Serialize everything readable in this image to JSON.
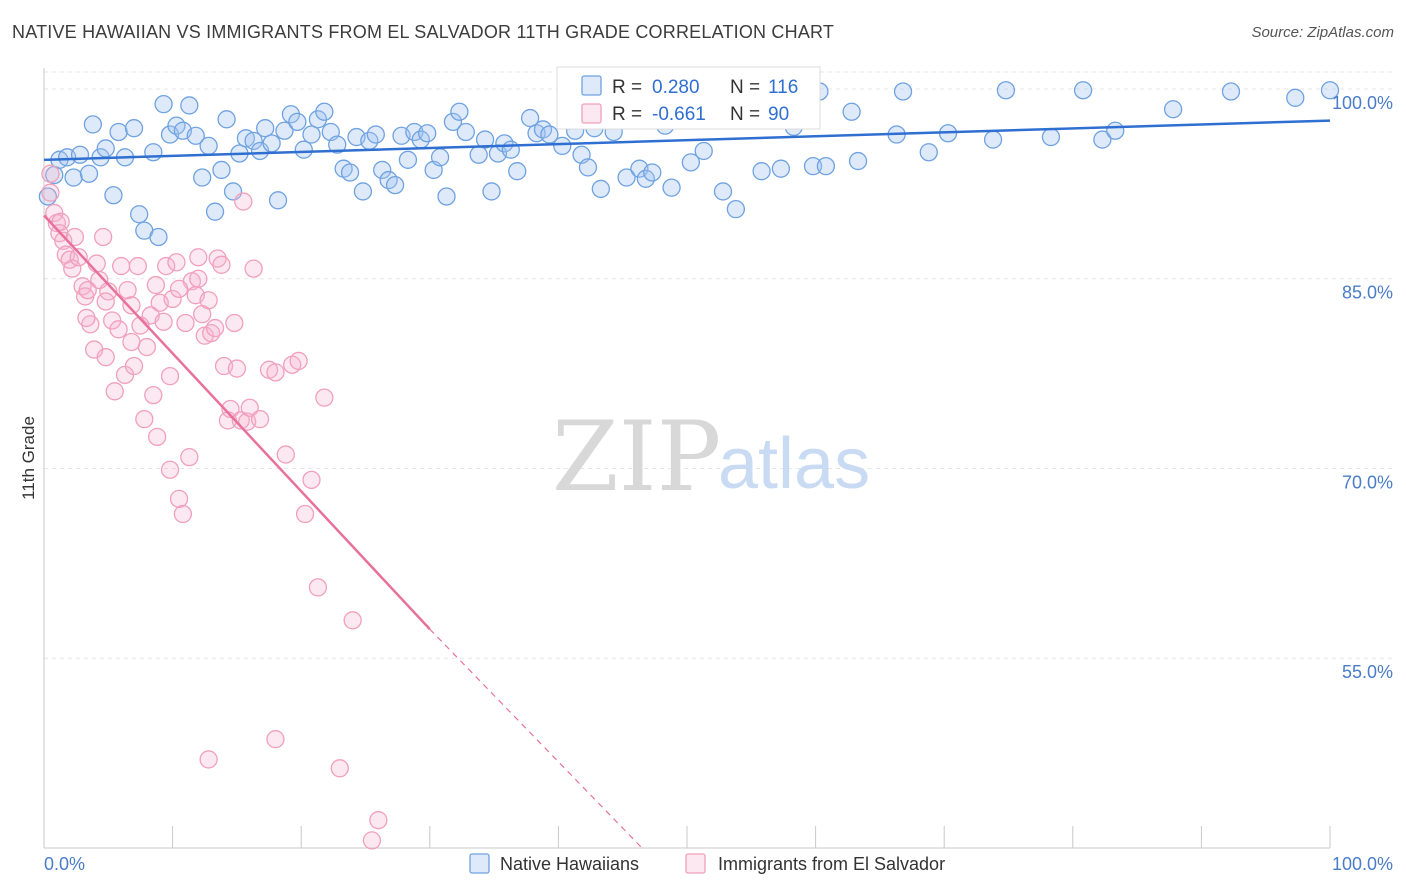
{
  "title": "NATIVE HAWAIIAN VS IMMIGRANTS FROM EL SALVADOR 11TH GRADE CORRELATION CHART",
  "source": "Source: ZipAtlas.com",
  "watermark": {
    "zip": "ZIP",
    "atlas": "atlas"
  },
  "colors": {
    "blue": "#6fa2e0",
    "blue_fill": "rgba(160,195,240,0.35)",
    "blue_line": "#2f6fd1",
    "pink": "#f0a0bb",
    "pink_fill": "rgba(245,180,205,0.30)",
    "pink_line": "#e8719b",
    "grid": "#e6e6e6"
  },
  "legend_box": {
    "rows": [
      {
        "r_label": "R =",
        "r_value": "0.280",
        "n_label": "N =",
        "n_value": "116",
        "color": "blue"
      },
      {
        "r_label": "R =",
        "r_value": "-0.661",
        "n_label": "N =",
        "n_value": "90",
        "color": "pink"
      }
    ]
  },
  "bottom_legend": [
    {
      "label": "Native Hawaiians",
      "color": "blue"
    },
    {
      "label": "Immigrants from El Salvador",
      "color": "pink"
    }
  ],
  "chart_data": {
    "type": "scatter",
    "ylabel": "11th Grade",
    "xlim": [
      0,
      100
    ],
    "ylim": [
      40,
      101.5
    ],
    "x_tick_labels": [
      {
        "v": 0,
        "label": "0.0%"
      },
      {
        "v": 100,
        "label": "100.0%"
      }
    ],
    "y_ticks": [
      {
        "v": 100,
        "label": "100.0%"
      },
      {
        "v": 85,
        "label": "85.0%"
      },
      {
        "v": 70,
        "label": "70.0%"
      },
      {
        "v": 55,
        "label": "55.0%"
      }
    ],
    "grid": true,
    "series": [
      {
        "name": "Native Hawaiians",
        "color": "blue",
        "trend": {
          "x0": 0,
          "y0": 94.4,
          "x1": 100,
          "y1": 97.5,
          "dash_from": null
        },
        "points": [
          [
            0.3,
            91.5
          ],
          [
            0.8,
            93.2
          ],
          [
            1.2,
            94.4
          ],
          [
            1.8,
            94.6
          ],
          [
            2.3,
            93.0
          ],
          [
            2.8,
            94.8
          ],
          [
            3.5,
            93.3
          ],
          [
            3.8,
            97.2
          ],
          [
            4.4,
            94.6
          ],
          [
            4.8,
            95.3
          ],
          [
            5.4,
            91.6
          ],
          [
            5.8,
            96.6
          ],
          [
            6.3,
            94.6
          ],
          [
            7.0,
            96.9
          ],
          [
            7.4,
            90.1
          ],
          [
            7.8,
            88.8
          ],
          [
            8.5,
            95.0
          ],
          [
            8.9,
            88.3
          ],
          [
            9.3,
            98.8
          ],
          [
            9.8,
            96.4
          ],
          [
            10.3,
            97.1
          ],
          [
            10.8,
            96.7
          ],
          [
            11.3,
            98.7
          ],
          [
            11.8,
            96.3
          ],
          [
            12.3,
            93.0
          ],
          [
            12.8,
            95.5
          ],
          [
            13.3,
            90.3
          ],
          [
            13.8,
            93.6
          ],
          [
            14.2,
            97.6
          ],
          [
            14.7,
            91.9
          ],
          [
            15.2,
            94.9
          ],
          [
            15.7,
            96.1
          ],
          [
            16.3,
            95.9
          ],
          [
            16.8,
            95.1
          ],
          [
            17.2,
            96.9
          ],
          [
            17.7,
            95.7
          ],
          [
            18.2,
            91.2
          ],
          [
            18.7,
            96.7
          ],
          [
            19.2,
            98.0
          ],
          [
            19.7,
            97.4
          ],
          [
            20.2,
            95.2
          ],
          [
            20.8,
            96.4
          ],
          [
            21.3,
            97.6
          ],
          [
            21.8,
            98.2
          ],
          [
            22.3,
            96.6
          ],
          [
            22.8,
            95.6
          ],
          [
            23.3,
            93.7
          ],
          [
            23.8,
            93.4
          ],
          [
            24.3,
            96.2
          ],
          [
            24.8,
            91.9
          ],
          [
            25.3,
            95.9
          ],
          [
            25.8,
            96.4
          ],
          [
            26.3,
            93.6
          ],
          [
            26.8,
            92.8
          ],
          [
            27.3,
            92.4
          ],
          [
            27.8,
            96.3
          ],
          [
            28.3,
            94.4
          ],
          [
            28.8,
            96.6
          ],
          [
            29.3,
            96.0
          ],
          [
            29.8,
            96.5
          ],
          [
            30.3,
            93.6
          ],
          [
            30.8,
            94.6
          ],
          [
            31.3,
            91.5
          ],
          [
            31.8,
            97.4
          ],
          [
            32.3,
            98.2
          ],
          [
            32.8,
            96.6
          ],
          [
            33.8,
            94.8
          ],
          [
            34.3,
            96.0
          ],
          [
            34.8,
            91.9
          ],
          [
            35.3,
            94.9
          ],
          [
            35.8,
            95.7
          ],
          [
            36.3,
            95.2
          ],
          [
            36.8,
            93.5
          ],
          [
            37.8,
            97.7
          ],
          [
            38.3,
            96.5
          ],
          [
            38.8,
            96.8
          ],
          [
            39.3,
            96.4
          ],
          [
            40.3,
            95.5
          ],
          [
            40.8,
            97.5
          ],
          [
            41.8,
            94.8
          ],
          [
            42.3,
            93.8
          ],
          [
            42.8,
            96.9
          ],
          [
            43.3,
            92.1
          ],
          [
            44.3,
            96.6
          ],
          [
            45.3,
            93.0
          ],
          [
            46.3,
            93.7
          ],
          [
            46.8,
            92.9
          ],
          [
            47.3,
            93.4
          ],
          [
            48.8,
            92.2
          ],
          [
            50.3,
            94.2
          ],
          [
            51.3,
            95.1
          ],
          [
            52.8,
            91.9
          ],
          [
            53.8,
            90.5
          ],
          [
            55.8,
            93.5
          ],
          [
            57.3,
            93.7
          ],
          [
            58.3,
            97.0
          ],
          [
            59.8,
            93.9
          ],
          [
            60.8,
            93.9
          ],
          [
            63.3,
            94.3
          ],
          [
            66.3,
            96.4
          ],
          [
            68.8,
            95.0
          ],
          [
            70.3,
            96.5
          ],
          [
            73.8,
            96.0
          ],
          [
            78.3,
            96.2
          ],
          [
            82.3,
            96.0
          ],
          [
            87.8,
            98.4
          ],
          [
            41.3,
            96.7
          ],
          [
            48.3,
            97.1
          ],
          [
            55.3,
            99.6
          ],
          [
            60.3,
            99.8
          ],
          [
            66.8,
            99.8
          ],
          [
            74.8,
            99.9
          ],
          [
            80.8,
            99.9
          ],
          [
            83.3,
            96.7
          ],
          [
            92.3,
            99.8
          ],
          [
            97.3,
            99.3
          ],
          [
            100.0,
            99.9
          ],
          [
            62.8,
            98.2
          ]
        ]
      },
      {
        "name": "Immigrants from El Salvador",
        "color": "pink",
        "trend": {
          "x0": 0,
          "y0": 90.0,
          "x1": 30.0,
          "y1": 57.3,
          "dash_to_x": 46.5,
          "dash_to_y": 40.0
        },
        "points": [
          [
            0.5,
            93.3
          ],
          [
            0.8,
            90.2
          ],
          [
            1.0,
            89.4
          ],
          [
            1.2,
            88.6
          ],
          [
            1.5,
            88.0
          ],
          [
            1.7,
            86.9
          ],
          [
            2.0,
            86.5
          ],
          [
            2.2,
            85.8
          ],
          [
            2.4,
            88.3
          ],
          [
            2.7,
            86.7
          ],
          [
            3.0,
            84.4
          ],
          [
            3.2,
            83.6
          ],
          [
            3.4,
            84.1
          ],
          [
            3.6,
            81.4
          ],
          [
            3.9,
            79.4
          ],
          [
            4.1,
            86.2
          ],
          [
            4.3,
            84.9
          ],
          [
            4.6,
            88.3
          ],
          [
            4.8,
            78.8
          ],
          [
            5.0,
            84.0
          ],
          [
            5.3,
            81.7
          ],
          [
            5.5,
            76.1
          ],
          [
            5.8,
            81.0
          ],
          [
            6.0,
            86.0
          ],
          [
            6.3,
            77.4
          ],
          [
            6.5,
            84.1
          ],
          [
            6.8,
            82.9
          ],
          [
            7.0,
            78.1
          ],
          [
            7.3,
            86.0
          ],
          [
            7.5,
            81.3
          ],
          [
            7.8,
            73.9
          ],
          [
            8.0,
            79.6
          ],
          [
            8.3,
            82.1
          ],
          [
            8.5,
            75.8
          ],
          [
            8.7,
            84.5
          ],
          [
            9.0,
            83.1
          ],
          [
            9.3,
            81.6
          ],
          [
            9.5,
            86.0
          ],
          [
            9.8,
            77.3
          ],
          [
            10.0,
            83.4
          ],
          [
            10.3,
            86.3
          ],
          [
            10.5,
            67.6
          ],
          [
            10.8,
            66.4
          ],
          [
            11.0,
            81.5
          ],
          [
            11.3,
            70.9
          ],
          [
            11.5,
            84.8
          ],
          [
            11.8,
            83.7
          ],
          [
            12.0,
            86.7
          ],
          [
            12.3,
            82.2
          ],
          [
            12.5,
            80.5
          ],
          [
            12.8,
            83.3
          ],
          [
            13.0,
            80.7
          ],
          [
            13.3,
            81.1
          ],
          [
            13.5,
            86.6
          ],
          [
            13.8,
            86.1
          ],
          [
            14.0,
            78.1
          ],
          [
            14.3,
            73.8
          ],
          [
            14.5,
            74.7
          ],
          [
            14.8,
            81.5
          ],
          [
            15.0,
            77.9
          ],
          [
            15.3,
            73.8
          ],
          [
            15.5,
            91.1
          ],
          [
            15.8,
            73.7
          ],
          [
            16.0,
            74.8
          ],
          [
            16.3,
            85.8
          ],
          [
            16.8,
            73.9
          ],
          [
            17.5,
            77.8
          ],
          [
            18.0,
            77.6
          ],
          [
            18.8,
            71.1
          ],
          [
            19.3,
            78.2
          ],
          [
            19.8,
            78.5
          ],
          [
            20.3,
            66.4
          ],
          [
            20.8,
            69.1
          ],
          [
            21.3,
            60.6
          ],
          [
            21.8,
            75.6
          ],
          [
            23.0,
            46.3
          ],
          [
            24.0,
            58.0
          ],
          [
            25.5,
            40.6
          ],
          [
            26.0,
            42.2
          ],
          [
            18.0,
            48.6
          ],
          [
            12.8,
            47.0
          ],
          [
            8.8,
            72.5
          ],
          [
            9.8,
            69.9
          ],
          [
            3.3,
            81.9
          ],
          [
            6.8,
            80.0
          ],
          [
            10.5,
            84.2
          ],
          [
            12.0,
            85.0
          ],
          [
            4.8,
            83.2
          ],
          [
            1.3,
            89.5
          ],
          [
            0.5,
            91.8
          ]
        ]
      }
    ]
  }
}
